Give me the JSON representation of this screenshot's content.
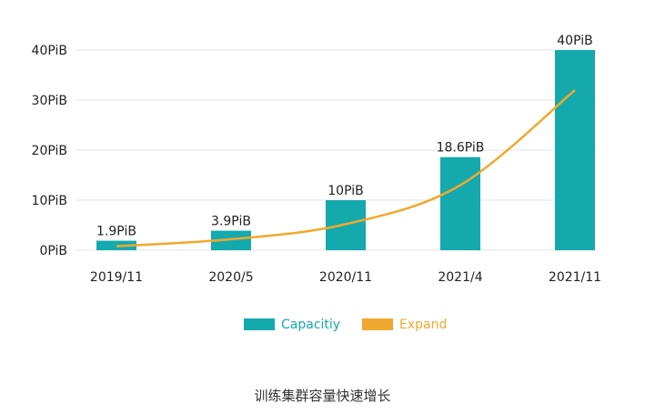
{
  "chart_data": {
    "type": "bar",
    "title": "",
    "categories": [
      "2019/11",
      "2020/5",
      "2020/11",
      "2021/4",
      "2021/11"
    ],
    "series": [
      {
        "name": "Capacitiy",
        "type": "bar",
        "values": [
          1.9,
          3.9,
          10,
          18.6,
          40
        ],
        "labels": [
          "1.9PiB",
          "3.9PiB",
          "10PiB",
          "18.6PiB",
          "40PiB"
        ],
        "color": "#14A9AC"
      },
      {
        "name": "Expand",
        "type": "line",
        "values": [
          0.8,
          2.2,
          5.2,
          13,
          32
        ],
        "color": "#F0A92E"
      }
    ],
    "yticks": [
      0,
      10,
      20,
      30,
      40
    ],
    "ytick_labels": [
      "0PiB",
      "10PiB",
      "20PiB",
      "30PiB",
      "40PiB"
    ],
    "ylim": [
      0,
      40
    ],
    "xlabel": "",
    "ylabel": "",
    "legend": "bottom-center",
    "grid": true
  },
  "caption": "训练集群容量快速增长",
  "colors": {
    "bar": "#14A9AC",
    "line": "#F0A92E",
    "grid": "#e3e3e3",
    "text": "#222222"
  }
}
